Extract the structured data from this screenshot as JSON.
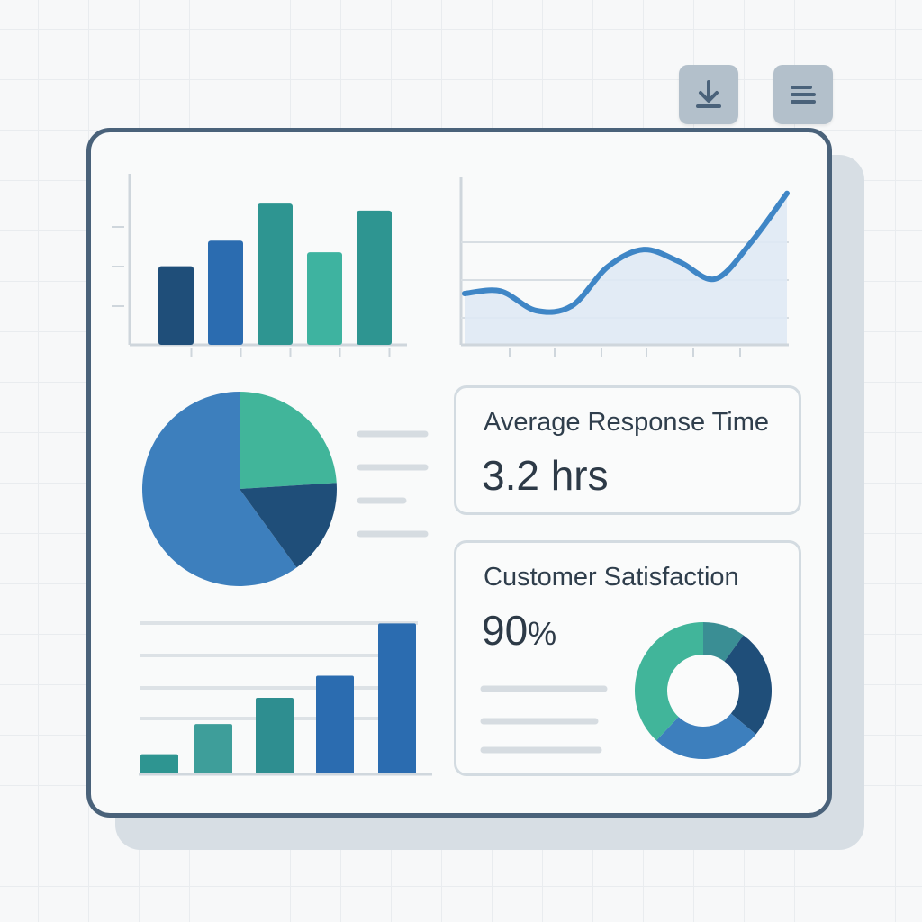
{
  "toolbar": {
    "download_icon": "download-icon",
    "menu_icon": "menu-icon"
  },
  "dashboard": {
    "response_card": {
      "title": "Average Response Time",
      "value": "3.2 hrs"
    },
    "satisfaction_card": {
      "title": "Customer Satisfaction",
      "value": "90",
      "unit": "%"
    }
  },
  "chart_data": [
    {
      "type": "bar",
      "categories": [
        "",
        "",
        "",
        "",
        ""
      ],
      "values": [
        3.4,
        4.5,
        6.1,
        4.0,
        5.8
      ],
      "colors": [
        "#1f4e79",
        "#2b6cb0",
        "#2e9591",
        "#3eb3a0",
        "#2e9591"
      ],
      "ylim": [
        0,
        7
      ],
      "title": "",
      "xlabel": "",
      "ylabel": ""
    },
    {
      "type": "area",
      "x": [
        0,
        1,
        2,
        3,
        4,
        5,
        6,
        7,
        8,
        9
      ],
      "values": [
        2.1,
        2.2,
        1.4,
        1.6,
        3.2,
        3.9,
        3.4,
        2.7,
        4.2,
        6.2
      ],
      "ylim": [
        0,
        7
      ],
      "line_color": "#3f86c6",
      "fill_color": "#dfe9f4",
      "grid": true,
      "title": "",
      "xlabel": "",
      "ylabel": ""
    },
    {
      "type": "pie",
      "values": [
        60,
        24,
        16
      ],
      "colors": [
        "#3d7fbd",
        "#41b59a",
        "#1f4e79"
      ],
      "legend_lines": 4
    },
    {
      "type": "bar",
      "categories": [
        "",
        "",
        "",
        "",
        ""
      ],
      "values": [
        1.0,
        2.5,
        3.8,
        4.9,
        7.5
      ],
      "colors": [
        "#2e9591",
        "#3e9e9a",
        "#2e8e90",
        "#2b6cb0",
        "#2b6cb0"
      ],
      "ylim": [
        0,
        8.5
      ],
      "grid": true,
      "title": "",
      "xlabel": "",
      "ylabel": ""
    },
    {
      "type": "pie",
      "style": "donut",
      "values": [
        10,
        26,
        26,
        38
      ],
      "colors": [
        "#3a8e94",
        "#1f4e79",
        "#3d7fbd",
        "#41b59a"
      ]
    }
  ]
}
